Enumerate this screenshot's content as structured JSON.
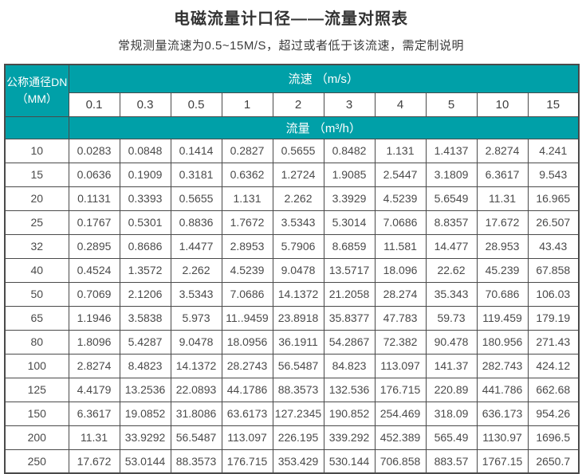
{
  "page": {
    "title": "电磁流量计口径——流量对照表",
    "subtitle": "常规测量流速为0.5~15M/S，超过或者低于该流速，需定制说明"
  },
  "table": {
    "corner_header_line1": "公称通径DN",
    "corner_header_line2": "（MM）",
    "velocity_header": "流速 （m/s）",
    "flow_header": "流量 （m³/h）",
    "velocities": [
      "0.1",
      "0.3",
      "0.5",
      "1",
      "2",
      "3",
      "4",
      "5",
      "10",
      "15"
    ],
    "rows": [
      {
        "dn": "10",
        "values": [
          "0.0283",
          "0.0848",
          "0.1414",
          "0.2827",
          "0.5655",
          "0.8482",
          "1.131",
          "1.4137",
          "2.8274",
          "4.241"
        ]
      },
      {
        "dn": "15",
        "values": [
          "0.0636",
          "0.1909",
          "0.3181",
          "0.6362",
          "1.2724",
          "1.9085",
          "2.5447",
          "3.1809",
          "6.3617",
          "9.543"
        ]
      },
      {
        "dn": "20",
        "values": [
          "0.1131",
          "0.3393",
          "0.5655",
          "1.131",
          "2.262",
          "3.3929",
          "4.5239",
          "5.6549",
          "11.31",
          "16.965"
        ]
      },
      {
        "dn": "25",
        "values": [
          "0.1767",
          "0.5301",
          "0.8836",
          "1.7672",
          "3.5343",
          "5.3014",
          "7.0686",
          "8.8357",
          "17.672",
          "26.507"
        ]
      },
      {
        "dn": "32",
        "values": [
          "0.2895",
          "0.8686",
          "1.4477",
          "2.8953",
          "5.7906",
          "8.6859",
          "11.581",
          "14.477",
          "28.953",
          "43.43"
        ]
      },
      {
        "dn": "40",
        "values": [
          "0.4524",
          "1.3572",
          "2.262",
          "4.5239",
          "9.0478",
          "13.5717",
          "18.096",
          "22.62",
          "45.239",
          "67.858"
        ]
      },
      {
        "dn": "50",
        "values": [
          "0.7069",
          "2.1206",
          "3.5343",
          "7.0686",
          "14.1372",
          "21.2058",
          "28.274",
          "35.343",
          "70.686",
          "106.03"
        ]
      },
      {
        "dn": "65",
        "values": [
          "1.1946",
          "3.5838",
          "5.973",
          "11..9459",
          "23.8918",
          "35.8377",
          "47.783",
          "59.73",
          "119.459",
          "179.19"
        ]
      },
      {
        "dn": "80",
        "values": [
          "1.8096",
          "5.4287",
          "9.0478",
          "18.0956",
          "36.1911",
          "54.2867",
          "72.382",
          "90.478",
          "180.956",
          "271.43"
        ]
      },
      {
        "dn": "100",
        "values": [
          "2.8274",
          "8.4823",
          "14.1372",
          "28.2743",
          "56.5487",
          "84.823",
          "113.097",
          "141.37",
          "282.743",
          "424.12"
        ]
      },
      {
        "dn": "125",
        "values": [
          "4.4179",
          "13.2536",
          "22.0893",
          "44.1786",
          "88.3573",
          "132.536",
          "176.715",
          "220.89",
          "441.786",
          "662.68"
        ]
      },
      {
        "dn": "150",
        "values": [
          "6.3617",
          "19.0852",
          "31.8086",
          "63.6173",
          "127.2345",
          "190.852",
          "254.469",
          "318.09",
          "636.173",
          "954.26"
        ]
      },
      {
        "dn": "200",
        "values": [
          "11.31",
          "33.9292",
          "56.5487",
          "113.097",
          "226.195",
          "339.292",
          "452.389",
          "565.49",
          "1130.97",
          "1696.5"
        ]
      },
      {
        "dn": "250",
        "values": [
          "17.672",
          "53.0144",
          "88.3573",
          "176.715",
          "353.429",
          "530.144",
          "706.858",
          "883.57",
          "1767.15",
          "2650.7"
        ]
      }
    ]
  },
  "colors": {
    "teal": "#00a0a8",
    "border": "#4a4a4a",
    "title_text": "#333333",
    "cell_text": "#4a4a4a"
  }
}
